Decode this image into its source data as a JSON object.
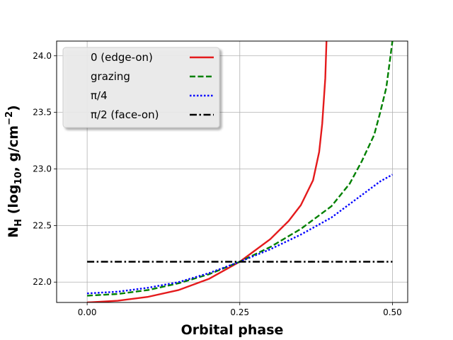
{
  "chart_data": {
    "type": "line",
    "title": "",
    "xlabel": "Orbital phase",
    "ylabel_parts": {
      "main": "N",
      "main_sub": "H",
      "open": " (log",
      "log_sub": "10",
      "unit": ", g/cm",
      "exp": "−2",
      "close": ")"
    },
    "xlim": [
      -0.05,
      0.525
    ],
    "ylim": [
      21.82,
      24.13
    ],
    "x_ticks": [
      0.0,
      0.25,
      0.5
    ],
    "x_tick_labels": [
      "0.00",
      "0.25",
      "0.50"
    ],
    "y_ticks": [
      22.0,
      22.5,
      23.0,
      23.5,
      24.0
    ],
    "y_tick_labels": [
      "22.0",
      "22.5",
      "23.0",
      "23.5",
      "24.0"
    ],
    "grid": true,
    "legend_position": "top-left",
    "series": [
      {
        "name": "0 (edge-on)",
        "color": "#e41a1c",
        "dash": "solid",
        "points": [
          [
            0.0,
            21.82
          ],
          [
            0.05,
            21.835
          ],
          [
            0.1,
            21.87
          ],
          [
            0.15,
            21.93
          ],
          [
            0.2,
            22.03
          ],
          [
            0.25,
            22.18
          ],
          [
            0.3,
            22.38
          ],
          [
            0.33,
            22.54
          ],
          [
            0.35,
            22.68
          ],
          [
            0.37,
            22.9
          ],
          [
            0.38,
            23.15
          ],
          [
            0.385,
            23.4
          ],
          [
            0.39,
            23.8
          ],
          [
            0.392,
            24.13
          ]
        ]
      },
      {
        "name": "grazing",
        "color": "#008000",
        "dash": "dashed",
        "points": [
          [
            0.0,
            21.88
          ],
          [
            0.05,
            21.895
          ],
          [
            0.1,
            21.93
          ],
          [
            0.15,
            21.99
          ],
          [
            0.2,
            22.07
          ],
          [
            0.25,
            22.18
          ],
          [
            0.3,
            22.31
          ],
          [
            0.35,
            22.47
          ],
          [
            0.4,
            22.67
          ],
          [
            0.43,
            22.87
          ],
          [
            0.45,
            23.07
          ],
          [
            0.47,
            23.3
          ],
          [
            0.48,
            23.5
          ],
          [
            0.49,
            23.72
          ],
          [
            0.5,
            24.13
          ]
        ]
      },
      {
        "name": "π/4",
        "color": "#0000ff",
        "dash": "dotted",
        "points": [
          [
            0.0,
            21.9
          ],
          [
            0.05,
            21.915
          ],
          [
            0.1,
            21.95
          ],
          [
            0.15,
            22.0
          ],
          [
            0.2,
            22.08
          ],
          [
            0.25,
            22.18
          ],
          [
            0.3,
            22.29
          ],
          [
            0.35,
            22.42
          ],
          [
            0.4,
            22.57
          ],
          [
            0.45,
            22.77
          ],
          [
            0.48,
            22.89
          ],
          [
            0.5,
            22.95
          ]
        ]
      },
      {
        "name": "π/2 (face-on)",
        "color": "#000000",
        "dash": "dashdot",
        "points": [
          [
            0.0,
            22.18
          ],
          [
            0.5,
            22.18
          ]
        ]
      }
    ]
  }
}
